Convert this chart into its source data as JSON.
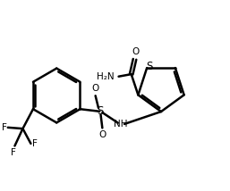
{
  "figsize": [
    2.57,
    2.14
  ],
  "dpi": 100,
  "background": "#ffffff",
  "line_color": "#000000",
  "line_width": 1.8,
  "font_size": 7.5,
  "xlim": [
    0,
    10
  ],
  "ylim": [
    0,
    8.3
  ]
}
